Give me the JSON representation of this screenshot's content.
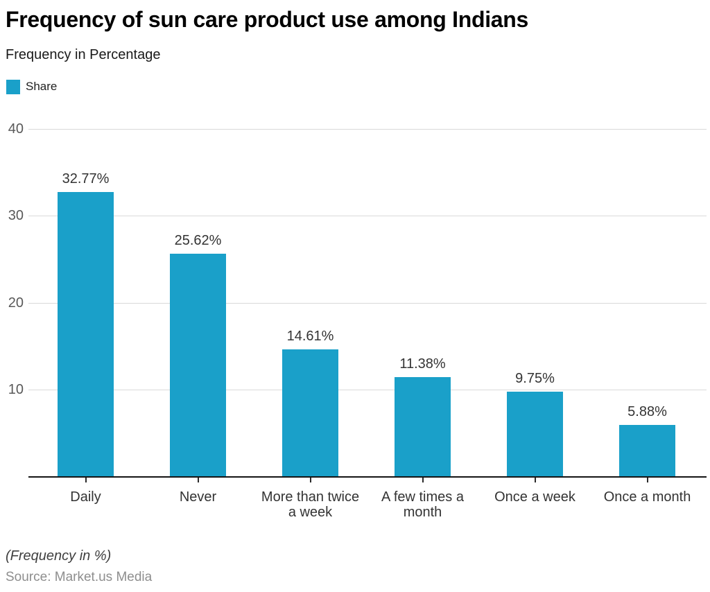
{
  "header": {
    "title": "Frequency of sun care product use among Indians",
    "subtitle": "Frequency in Percentage"
  },
  "legend": {
    "label": "Share"
  },
  "chart_data": {
    "type": "bar",
    "title": "Frequency of sun care product use among Indians",
    "subtitle": "Frequency in Percentage",
    "series_name": "Share",
    "categories": [
      "Daily",
      "Never",
      "More than twice a week",
      "A few times a month",
      "Once a week",
      "Once a month"
    ],
    "category_lines": [
      [
        "Daily"
      ],
      [
        "Never"
      ],
      [
        "More than twice",
        "a week"
      ],
      [
        "A few times a",
        "month"
      ],
      [
        "Once a week"
      ],
      [
        "Once a month"
      ]
    ],
    "values": [
      32.77,
      25.62,
      14.61,
      11.38,
      9.75,
      5.88
    ],
    "value_labels": [
      "32.77%",
      "25.62%",
      "14.61%",
      "11.38%",
      "9.75%",
      "5.88%"
    ],
    "xlabel": "",
    "ylabel": "",
    "ylim": [
      0,
      40
    ],
    "y_ticks": [
      10,
      20,
      30,
      40
    ],
    "grid": true,
    "legend_position": "top-left",
    "bar_color": "#1aa0c9"
  },
  "colors": {
    "accent": "#1aa0c9",
    "gridline": "#d9d9d9",
    "axis_line": "#141414",
    "y_tick_text": "#595959",
    "value_text": "#333333",
    "category_text": "#333333",
    "title_text": "#000000",
    "source_text": "#8e8e8e"
  },
  "footer": {
    "note": "(Frequency in %)",
    "source": "Source: Market.us Media"
  }
}
